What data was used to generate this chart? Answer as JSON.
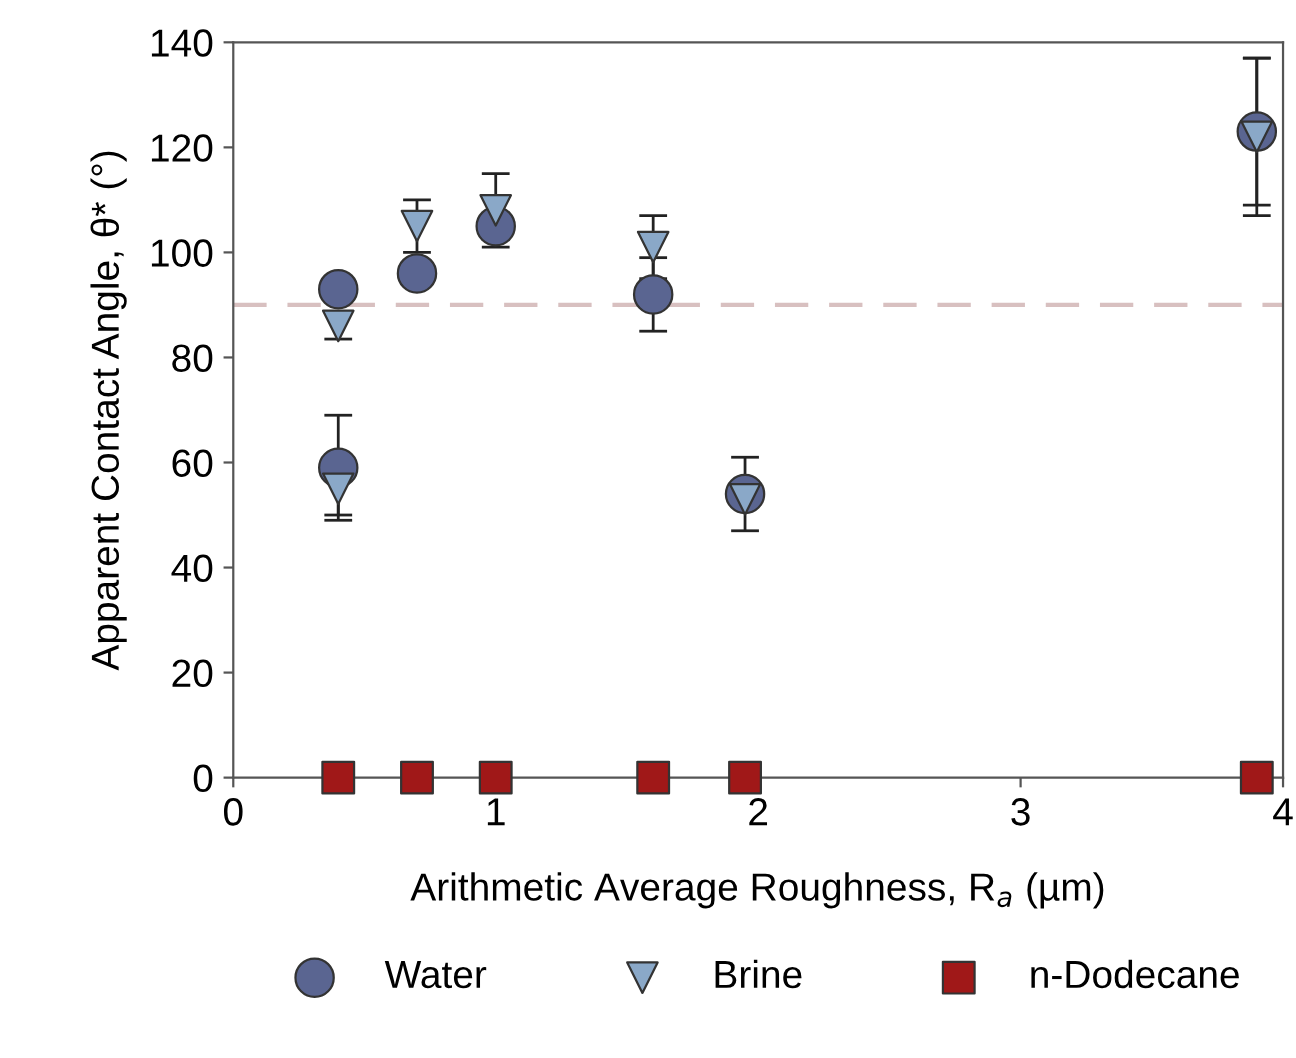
{
  "chart_data": {
    "type": "scatter",
    "xlabel": "Arithmetic Average Roughness, R$_{a}$ (µm)",
    "ylabel": "Apparent Contact Angle, θ* (°)",
    "xlim": [
      0,
      4
    ],
    "xticks": [
      0,
      1,
      2,
      3,
      4
    ],
    "ylim": [
      0,
      140
    ],
    "yticks": [
      0,
      20,
      40,
      60,
      80,
      100,
      120,
      140
    ],
    "grid": false,
    "legend": "bottom",
    "series": [
      {
        "name": "Water",
        "color": "#5a6591",
        "marker": "circle",
        "x": [
          0.4,
          0.4,
          0.7,
          1.0,
          1.6,
          1.95,
          3.9
        ],
        "values": [
          93,
          59,
          96,
          105,
          92,
          54,
          123
        ],
        "errors": [
          null,
          10,
          null,
          2.5,
          7,
          7,
          14
        ]
      },
      {
        "name": "Brine",
        "color": "#8aa8c8",
        "marker": "triangle",
        "x": [
          0.4,
          0.4,
          0.7,
          1.0,
          1.6,
          1.95,
          3.9
        ],
        "values": [
          86,
          55,
          105,
          108,
          101,
          53,
          122
        ],
        "errors": [
          2.5,
          5,
          5,
          7,
          6,
          null,
          15
        ]
      },
      {
        "name": "n-Dodecane",
        "color": "#a01818",
        "marker": "square",
        "x": [
          0.4,
          0.7,
          1.0,
          1.6,
          1.95,
          3.9
        ],
        "values": [
          0,
          0,
          0,
          0,
          0,
          0
        ]
      }
    ],
    "ref_lines": [
      {
        "axis": "y",
        "value": 90,
        "color": "#d8c0c0",
        "line_style": "dashed"
      }
    ]
  }
}
